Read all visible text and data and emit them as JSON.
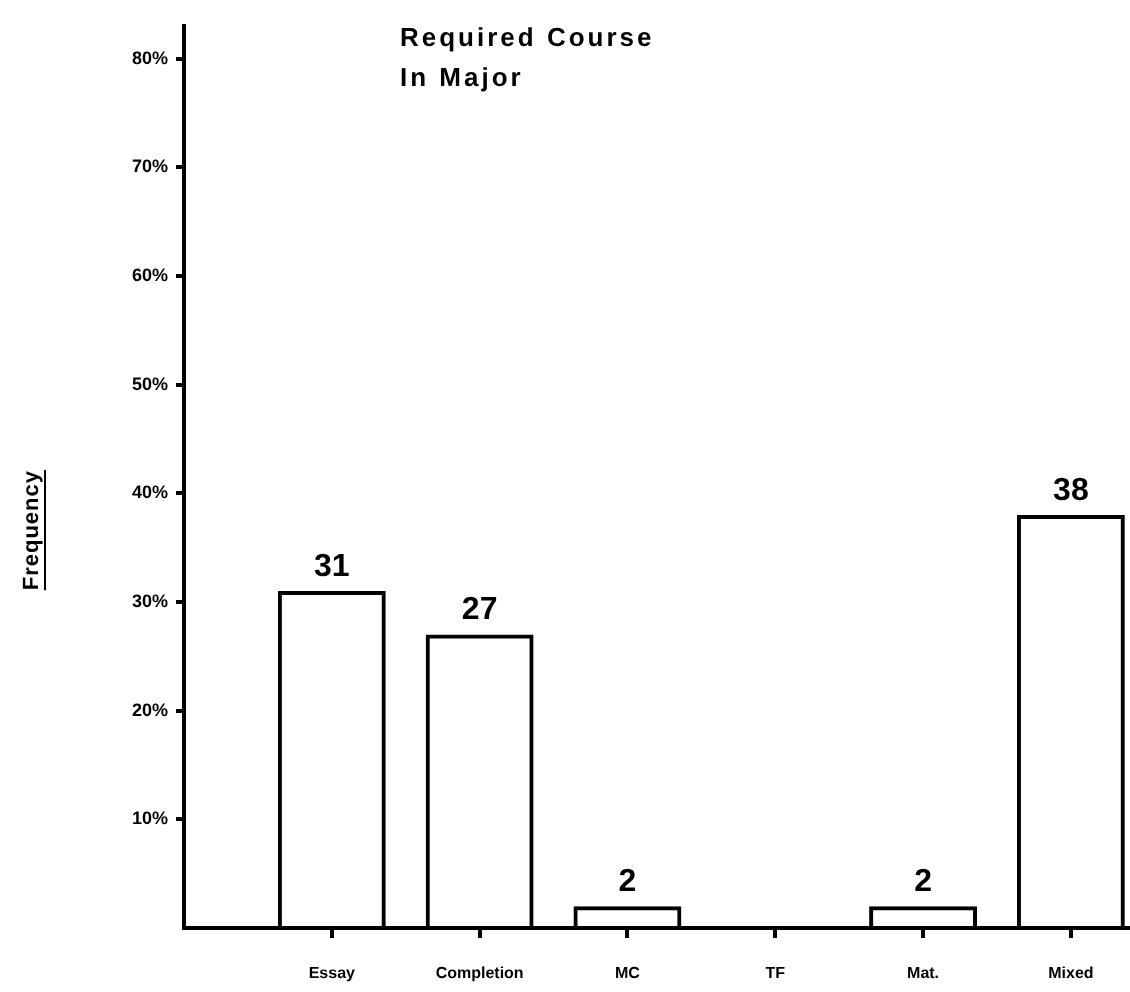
{
  "chart_data": {
    "type": "bar",
    "title": "Required Course In Major",
    "ylabel": "Frequency",
    "categories": [
      "Essay",
      "Completion",
      "MC",
      "TF",
      "Mat.",
      "Mixed"
    ],
    "values": [
      31,
      27,
      2,
      0,
      2,
      38
    ],
    "value_labels": [
      "31",
      "27",
      "2",
      null,
      "2",
      "38"
    ],
    "color": "#000000",
    "ylim": [
      0,
      83
    ],
    "yticks": [
      {
        "value": 10,
        "label": "10%"
      },
      {
        "value": 20,
        "label": "20%"
      },
      {
        "value": 30,
        "label": "30%"
      },
      {
        "value": 40,
        "label": "40%"
      },
      {
        "value": 50,
        "label": "50%"
      },
      {
        "value": 60,
        "label": "60%"
      },
      {
        "value": 70,
        "label": "70%"
      },
      {
        "value": 80,
        "label": "80%"
      }
    ]
  }
}
